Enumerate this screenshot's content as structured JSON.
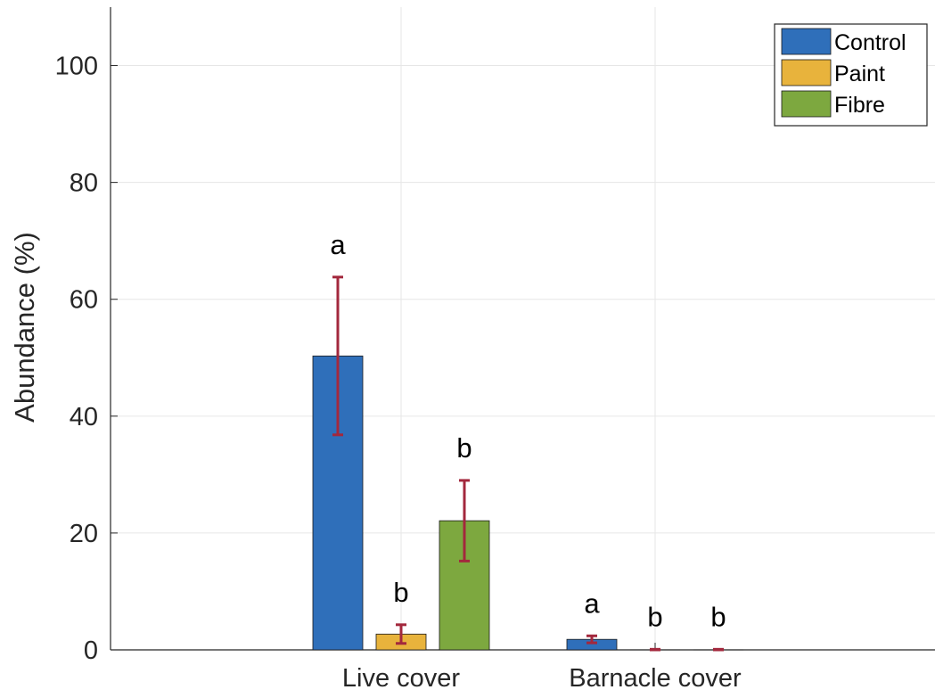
{
  "chart_data": {
    "type": "bar",
    "title": "",
    "xlabel": "",
    "ylabel": "Abundance (%)",
    "ylim": [
      0,
      110
    ],
    "yticks": [
      0,
      20,
      40,
      60,
      80,
      100
    ],
    "categories": [
      "Live cover",
      "Barnacle cover"
    ],
    "series": [
      {
        "name": "Control",
        "color": "#2f6fba",
        "values": [
          50.3,
          1.8
        ],
        "error": [
          13.5,
          0.6
        ],
        "labels": [
          "a",
          "a"
        ]
      },
      {
        "name": "Paint",
        "color": "#e8b33c",
        "values": [
          2.7,
          0.05
        ],
        "error": [
          1.6,
          0.05
        ],
        "labels": [
          "b",
          "b"
        ]
      },
      {
        "name": "Fibre",
        "color": "#7da83f",
        "values": [
          22.1,
          0.05
        ],
        "error": [
          6.9,
          0.05
        ],
        "labels": [
          "b",
          "b"
        ]
      }
    ],
    "error_bar_color": "#a3283d",
    "grid": true,
    "legend_position": "top-right"
  }
}
